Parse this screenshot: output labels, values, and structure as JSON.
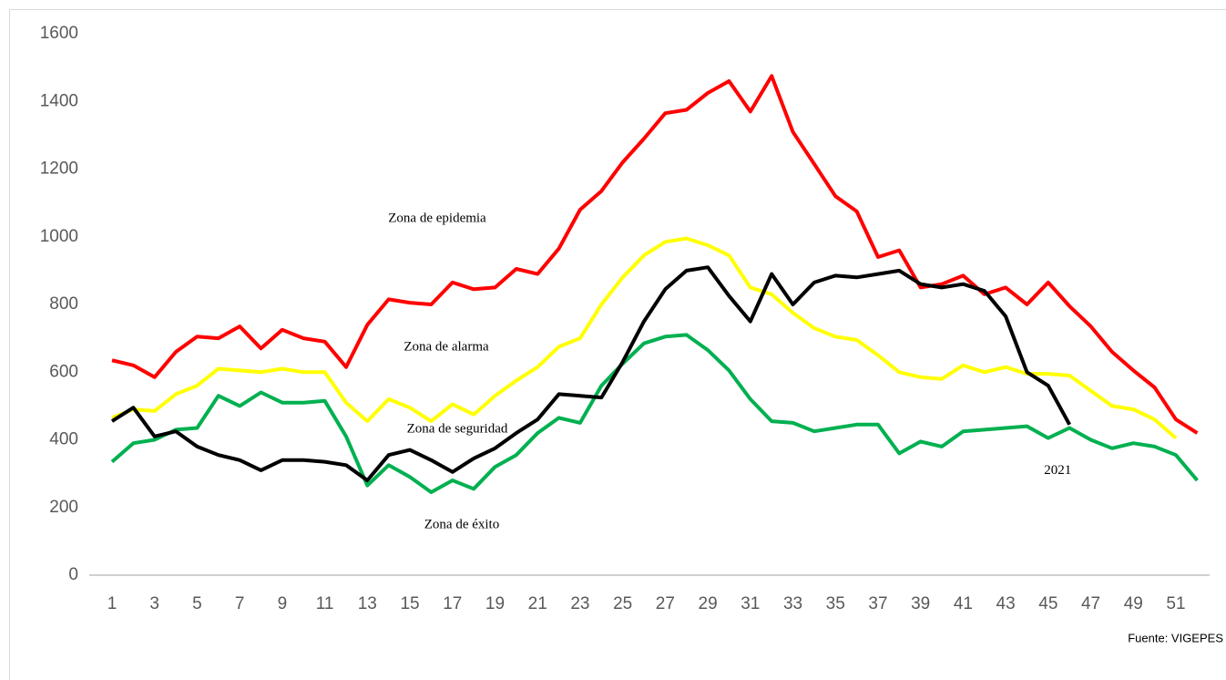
{
  "chart_data": {
    "type": "line",
    "categories": [
      "1",
      null,
      "3",
      null,
      "5",
      null,
      "7",
      null,
      "9",
      null,
      "11",
      null,
      "13",
      null,
      "15",
      null,
      "17",
      null,
      "19",
      null,
      "21",
      null,
      "23",
      null,
      "25",
      null,
      "27",
      null,
      "29",
      null,
      "31",
      null,
      "33",
      null,
      "35",
      null,
      "37",
      null,
      "39",
      null,
      "41",
      null,
      "43",
      null,
      "45",
      null,
      "47",
      null,
      "49",
      null,
      "51",
      null
    ],
    "series": [
      {
        "color": "#ff0000",
        "values": [
          635,
          620,
          585,
          660,
          705,
          700,
          735,
          670,
          725,
          700,
          690,
          615,
          740,
          815,
          805,
          800,
          865,
          845,
          850,
          905,
          890,
          965,
          1080,
          1135,
          1220,
          1290,
          1365,
          1375,
          1425,
          1460,
          1370,
          1475,
          1310,
          1215,
          1120,
          1075,
          940,
          960,
          850,
          860,
          885,
          830,
          850,
          800,
          865,
          795,
          735,
          660,
          605,
          555,
          460,
          420
        ]
      },
      {
        "color": "#ffff00",
        "values": [
          465,
          490,
          485,
          535,
          560,
          610,
          605,
          600,
          610,
          600,
          600,
          510,
          455,
          520,
          495,
          455,
          505,
          475,
          530,
          575,
          615,
          675,
          700,
          800,
          880,
          945,
          985,
          995,
          975,
          945,
          850,
          830,
          775,
          730,
          705,
          695,
          650,
          600,
          585,
          580,
          620,
          600,
          615,
          595,
          595,
          590,
          545,
          500,
          490,
          460,
          405,
          null
        ]
      },
      {
        "color": "#00b050",
        "values": [
          335,
          390,
          400,
          430,
          435,
          530,
          500,
          540,
          510,
          510,
          515,
          410,
          265,
          325,
          290,
          245,
          280,
          255,
          320,
          355,
          420,
          465,
          450,
          560,
          625,
          685,
          705,
          710,
          665,
          605,
          520,
          455,
          450,
          425,
          435,
          445,
          445,
          360,
          395,
          380,
          425,
          430,
          435,
          440,
          405,
          435,
          400,
          375,
          390,
          380,
          355,
          280
        ]
      },
      {
        "name": "2021",
        "color": "#000000",
        "values": [
          455,
          495,
          410,
          425,
          380,
          355,
          340,
          310,
          340,
          340,
          335,
          325,
          280,
          355,
          370,
          340,
          305,
          345,
          375,
          420,
          460,
          535,
          530,
          525,
          630,
          750,
          845,
          900,
          910,
          825,
          750,
          890,
          800,
          865,
          885,
          880,
          890,
          900,
          860,
          850,
          860,
          840,
          765,
          600,
          560,
          445,
          null,
          null,
          null,
          null,
          null,
          null
        ]
      }
    ],
    "ylim": [
      0,
      1600
    ],
    "yticks": [
      0,
      200,
      400,
      600,
      800,
      1000,
      1200,
      1400,
      1600
    ],
    "annotations": [
      "Zona de epidemia",
      "Zona de alarma",
      "Zona de seguridad",
      "Zona de éxito"
    ],
    "source": "Fuente: VIGEPES"
  }
}
